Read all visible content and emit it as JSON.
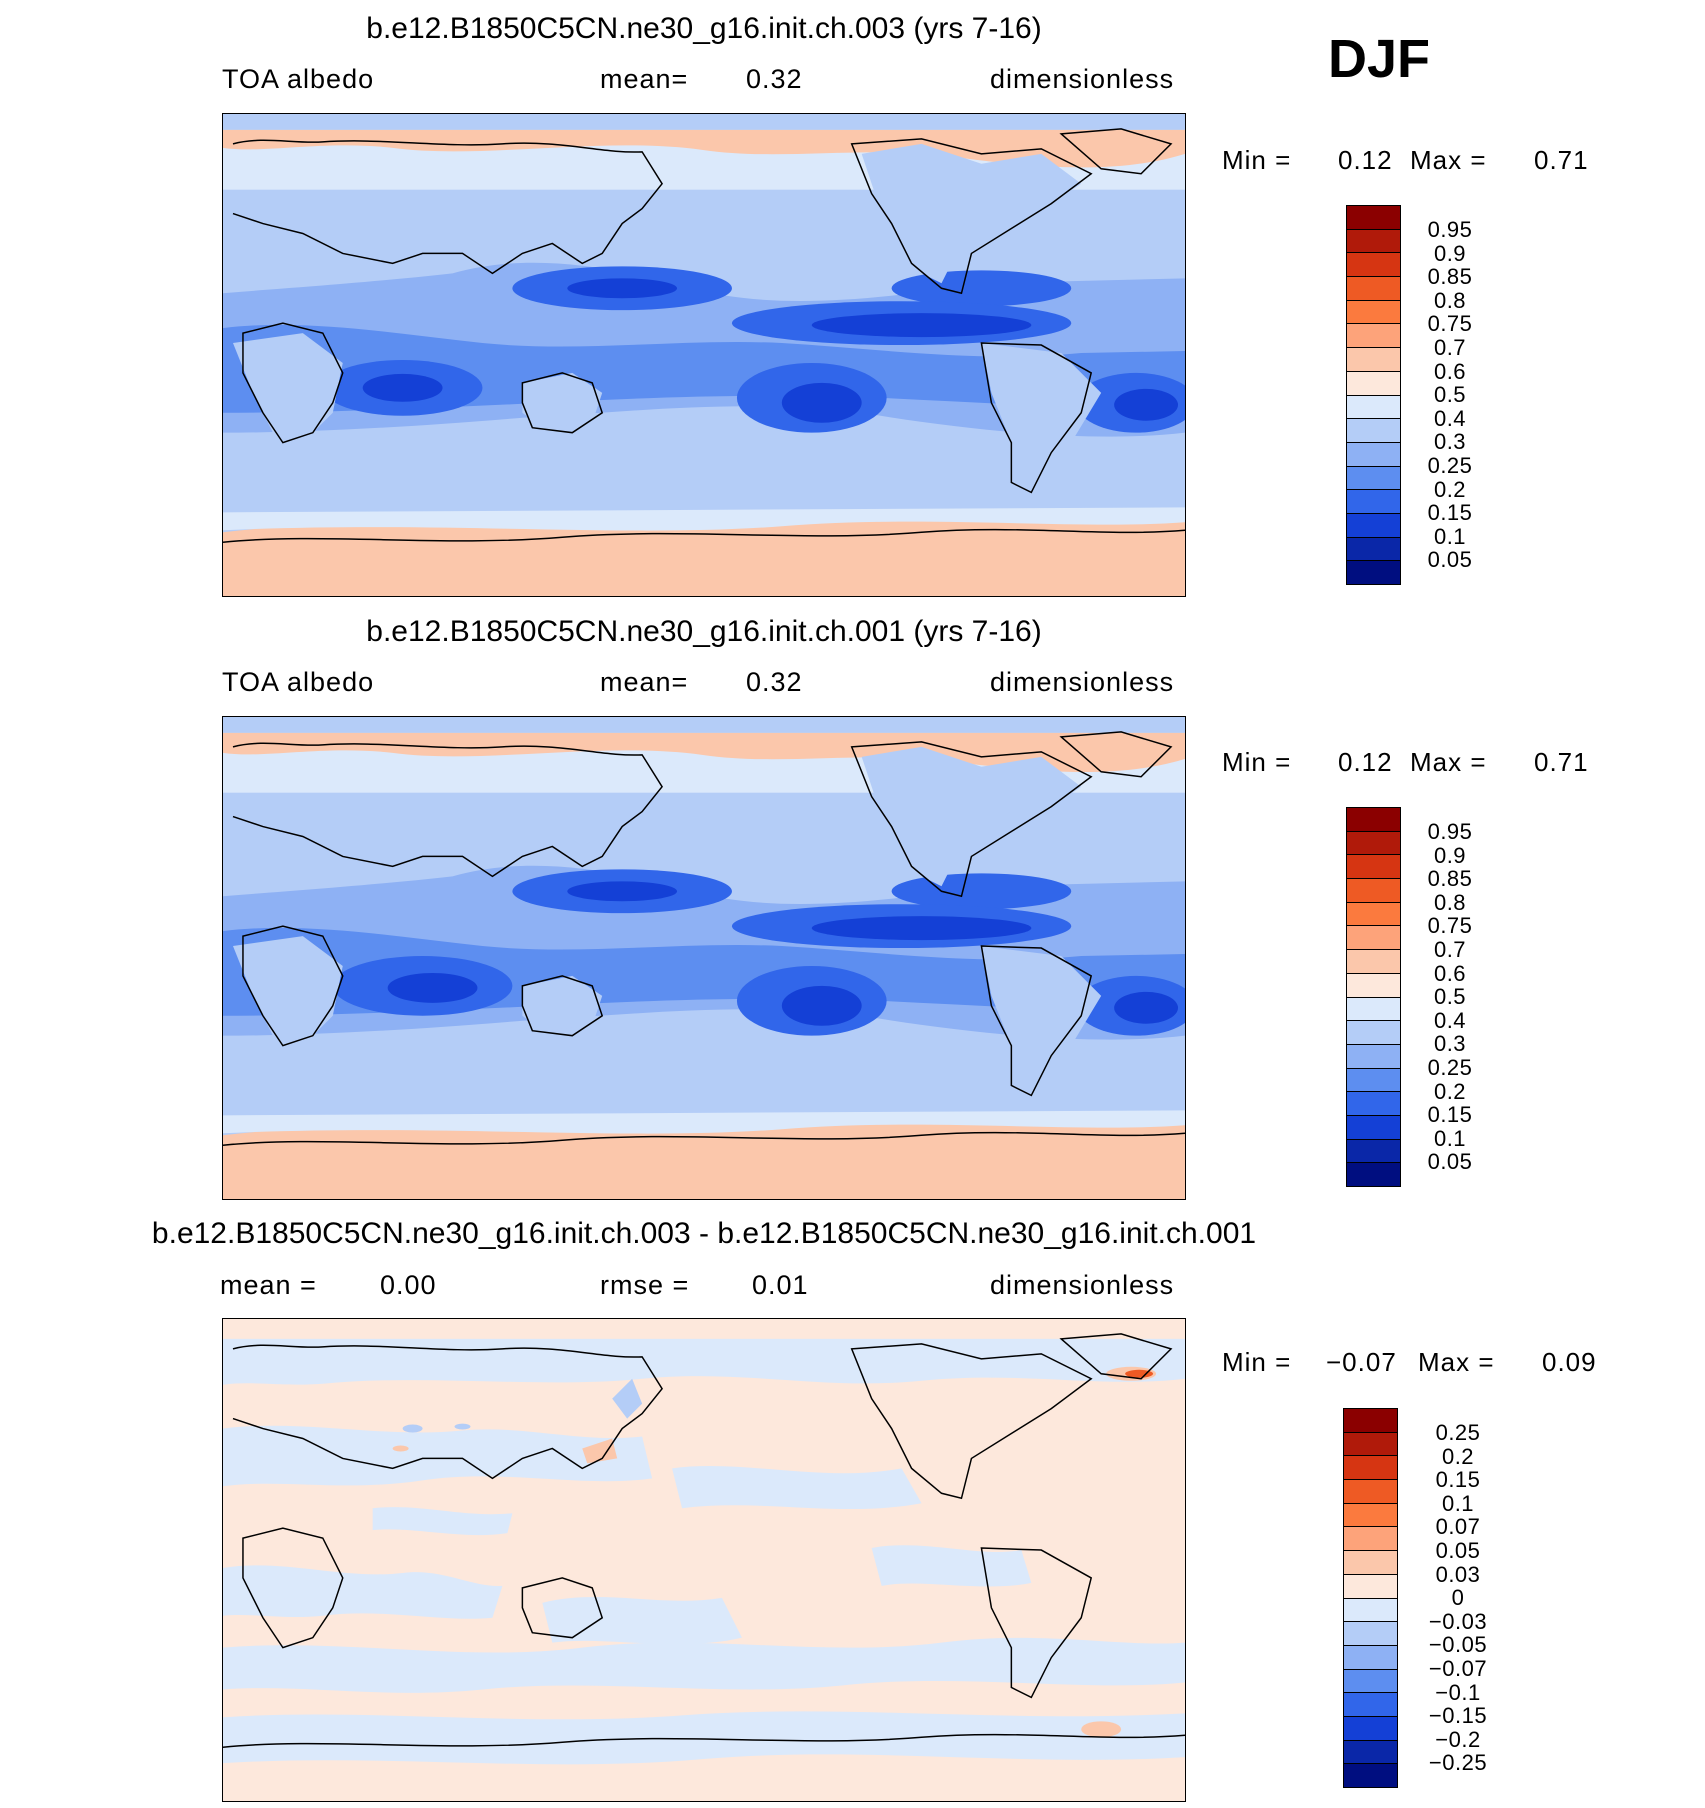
{
  "season": "DJF",
  "panels": [
    {
      "title": "b.e12.B1850C5CN.ne30_g16.init.ch.003 (yrs 7-16)",
      "left_label": "TOA albedo",
      "center_label": "mean=",
      "center_value": "0.32",
      "right_label": "dimensionless",
      "min_label": "Min =",
      "min_value": "0.12",
      "max_label": "Max =",
      "max_value": "0.71",
      "colorbar_labels": [
        "0.95",
        "0.9",
        "0.85",
        "0.8",
        "0.75",
        "0.7",
        "0.6",
        "0.5",
        "0.4",
        "0.3",
        "0.25",
        "0.2",
        "0.15",
        "0.1",
        "0.05"
      ]
    },
    {
      "title": "b.e12.B1850C5CN.ne30_g16.init.ch.001 (yrs 7-16)",
      "left_label": "TOA albedo",
      "center_label": "mean=",
      "center_value": "0.32",
      "right_label": "dimensionless",
      "min_label": "Min =",
      "min_value": "0.12",
      "max_label": "Max =",
      "max_value": "0.71",
      "colorbar_labels": [
        "0.95",
        "0.9",
        "0.85",
        "0.8",
        "0.75",
        "0.7",
        "0.6",
        "0.5",
        "0.4",
        "0.3",
        "0.25",
        "0.2",
        "0.15",
        "0.1",
        "0.05"
      ]
    },
    {
      "title": "b.e12.B1850C5CN.ne30_g16.init.ch.003 - b.e12.B1850C5CN.ne30_g16.init.ch.001",
      "left_label": "mean =",
      "left_value": "0.00",
      "center_label": "rmse =",
      "center_value": "0.01",
      "right_label": "dimensionless",
      "min_label": "Min =",
      "min_value": "−0.07",
      "max_label": "Max =",
      "max_value": "0.09",
      "colorbar_labels": [
        "0.25",
        "0.2",
        "0.15",
        "0.1",
        "0.07",
        "0.05",
        "0.03",
        "0",
        "−0.03",
        "−0.05",
        "−0.07",
        "−0.1",
        "−0.15",
        "−0.2",
        "−0.25"
      ]
    }
  ],
  "palette": [
    "#8b0000",
    "#b01a0a",
    "#d63512",
    "#ee5a24",
    "#fb7a3e",
    "#fda37a",
    "#fbc7ab",
    "#fde8dc",
    "#dbe9fb",
    "#b4cdf7",
    "#8eb1f4",
    "#5d8ef0",
    "#3166ea",
    "#1440d6",
    "#0a27a8",
    "#000e80"
  ]
}
